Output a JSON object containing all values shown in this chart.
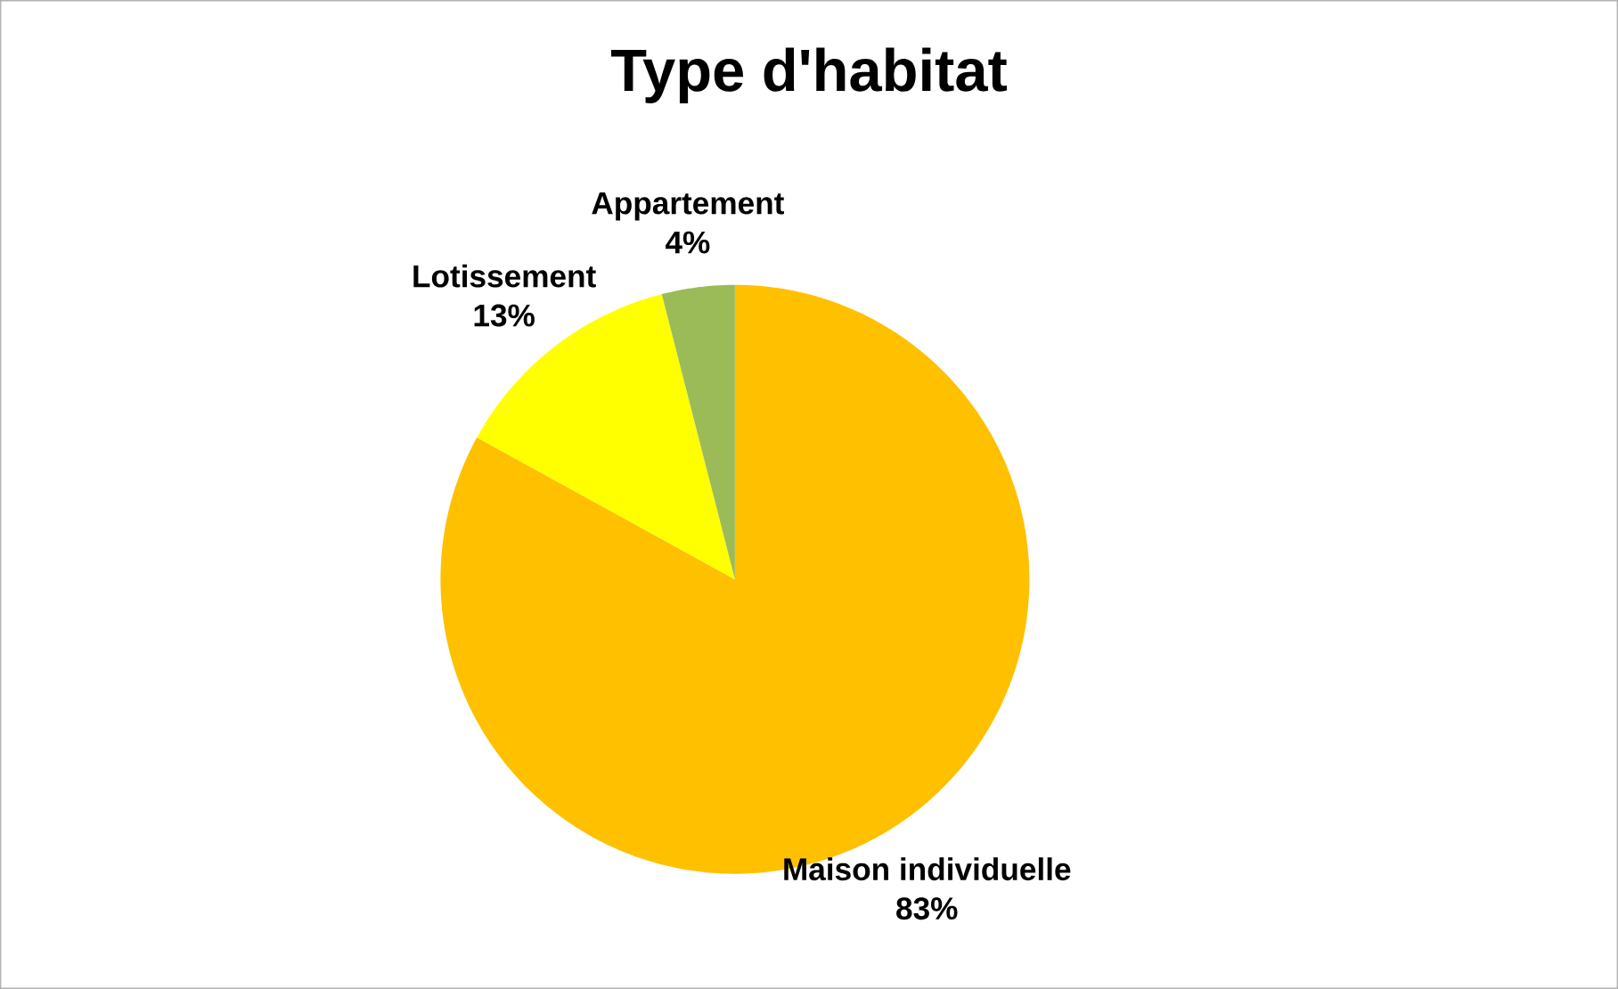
{
  "chart_data": {
    "type": "pie",
    "title": "Type d'habitat",
    "categories": [
      "Maison individuelle",
      "Lotissement",
      "Appartement"
    ],
    "values": [
      83,
      13,
      4
    ],
    "colors": [
      "#ffc000",
      "#ffff00",
      "#9bbb59"
    ],
    "value_labels": [
      "83%",
      "13%",
      "4%"
    ]
  }
}
